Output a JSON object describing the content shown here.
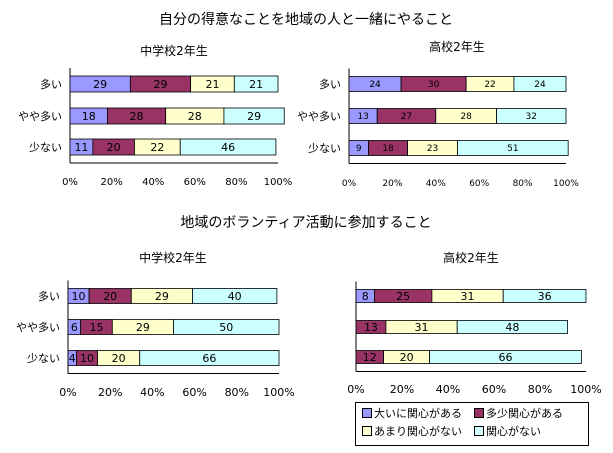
{
  "section1_title": "自分の得意なことを地域の人と一緒にやること",
  "section2_title": "地域のボランティア活動に参加すること",
  "colors": {
    "大いに関心がある": "#9999ff",
    "多少関心がある": "#993366",
    "あまり関心がない": "#ffffcc",
    "関心がない": "#ccffff"
  },
  "legend": {
    "items": [
      "大いに関心がある",
      "多少関心がある",
      "あまり関心がない",
      "関心がない"
    ]
  },
  "chart_data": [
    {
      "type": "bar",
      "orientation": "horizontal",
      "stacked": "percent",
      "title": "中学校2年生",
      "categories": [
        "多い",
        "やや多い",
        "少ない"
      ],
      "series": [
        {
          "name": "大いに関心がある",
          "values": [
            29,
            18,
            11
          ]
        },
        {
          "name": "多少関心がある",
          "values": [
            29,
            28,
            20
          ]
        },
        {
          "name": "あまり関心がない",
          "values": [
            21,
            28,
            22
          ]
        },
        {
          "name": "関心がない",
          "values": [
            21,
            29,
            46
          ]
        }
      ],
      "xticks": [
        "0%",
        "20%",
        "40%",
        "60%",
        "80%",
        "100%"
      ],
      "xlim": [
        0,
        100
      ]
    },
    {
      "type": "bar",
      "orientation": "horizontal",
      "stacked": "percent",
      "title": "高校2年生",
      "categories": [
        "多い",
        "やや多い",
        "少ない"
      ],
      "series": [
        {
          "name": "大いに関心がある",
          "values": [
            24,
            13,
            9
          ]
        },
        {
          "name": "多少関心がある",
          "values": [
            30,
            27,
            18
          ]
        },
        {
          "name": "あまり関心がない",
          "values": [
            22,
            28,
            23
          ]
        },
        {
          "name": "関心がない",
          "values": [
            24,
            32,
            51
          ]
        }
      ],
      "xticks": [
        "0%",
        "20%",
        "40%",
        "60%",
        "80%",
        "100%"
      ],
      "xlim": [
        0,
        100
      ]
    },
    {
      "type": "bar",
      "orientation": "horizontal",
      "stacked": "percent",
      "title": "中学校2年生",
      "categories": [
        "多い",
        "やや多い",
        "少ない"
      ],
      "series": [
        {
          "name": "大いに関心がある",
          "values": [
            10,
            6,
            4
          ]
        },
        {
          "name": "多少関心がある",
          "values": [
            20,
            15,
            10
          ]
        },
        {
          "name": "あまり関心がない",
          "values": [
            29,
            29,
            20
          ]
        },
        {
          "name": "関心がない",
          "values": [
            40,
            50,
            66
          ]
        }
      ],
      "xticks": [
        "0%",
        "20%",
        "40%",
        "60%",
        "80%",
        "100%"
      ],
      "xlim": [
        0,
        100
      ]
    },
    {
      "type": "bar",
      "orientation": "horizontal",
      "stacked": "percent",
      "title": "高校2年生",
      "categories": [
        "",
        "",
        ""
      ],
      "series": [
        {
          "name": "大いに関心がある",
          "values": [
            8,
            0,
            0
          ]
        },
        {
          "name": "多少関心がある",
          "values": [
            25,
            13,
            12
          ]
        },
        {
          "name": "あまり関心がない",
          "values": [
            31,
            31,
            20
          ]
        },
        {
          "name": "関心がない",
          "values": [
            36,
            48,
            66
          ]
        }
      ],
      "xticks": [
        "0%",
        "20%",
        "40%",
        "60%",
        "80%",
        "100%"
      ],
      "xlim": [
        0,
        100
      ]
    }
  ]
}
